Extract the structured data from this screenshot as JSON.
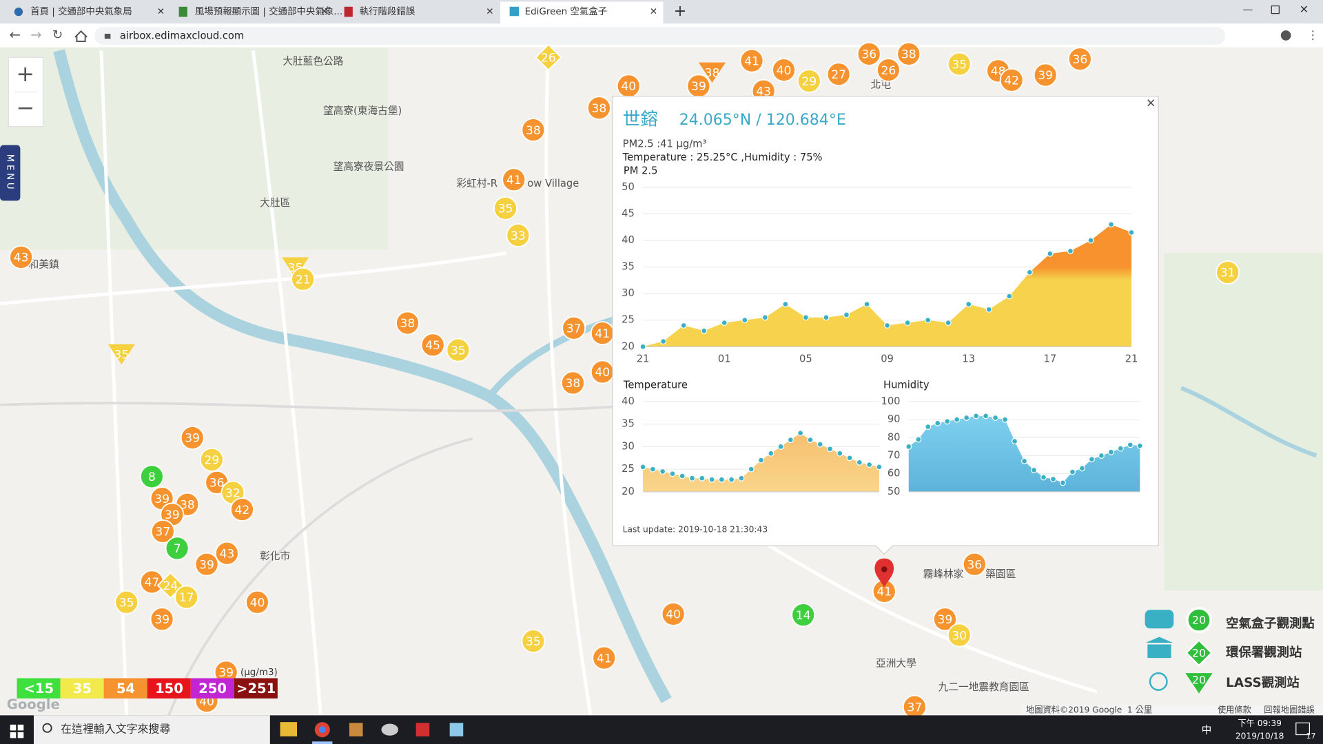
{
  "browser": {
    "tabs": [
      "首頁 | 交通部中央氣象局",
      "風場預報顯示圖 | 交通部中央氣象...",
      "執行階段錯誤",
      "EdiGreen 空氣盒子"
    ],
    "url": "airbox.edimaxcloud.com"
  },
  "map": {
    "menu": "MENU",
    "places": [
      "大肚藍色公路",
      "望高寮(東海古堡)",
      "望高寮夜景公園",
      "大肚區",
      "和美鎮",
      "彰化市",
      "彩虹村-R",
      "ow Village",
      "霧峰林家",
      "築園區",
      "亞洲大學",
      "九二一地震教育園區",
      "北屯"
    ],
    "markers": [
      {
        "value": 26,
        "color": "#f5d142"
      },
      {
        "value": 38,
        "color": "#f7932e"
      },
      {
        "value": 38,
        "color": "#f7932e"
      },
      {
        "value": 41,
        "color": "#f7932e"
      },
      {
        "value": 35,
        "color": "#f5d142"
      },
      {
        "value": 33,
        "color": "#f5d142"
      },
      {
        "value": 43,
        "color": "#f7932e"
      },
      {
        "value": 35,
        "color": "#f5d142"
      },
      {
        "value": 21,
        "color": "#f5d142"
      },
      {
        "value": 35,
        "color": "#f5d142"
      },
      {
        "value": 38,
        "color": "#f7932e"
      },
      {
        "value": 45,
        "color": "#f7932e"
      },
      {
        "value": 35,
        "color": "#f5d142"
      },
      {
        "value": 37,
        "color": "#f7932e"
      },
      {
        "value": 41,
        "color": "#f7932e"
      },
      {
        "value": 40,
        "color": "#f7932e"
      },
      {
        "value": 38,
        "color": "#f7932e"
      },
      {
        "value": 39,
        "color": "#f7932e"
      },
      {
        "value": 29,
        "color": "#f5d142"
      },
      {
        "value": 8,
        "color": "#3ecf3e"
      },
      {
        "value": 36,
        "color": "#f7932e"
      },
      {
        "value": 32,
        "color": "#f5d142"
      },
      {
        "value": 39,
        "color": "#f7932e"
      },
      {
        "value": 38,
        "color": "#f7932e"
      },
      {
        "value": 42,
        "color": "#f7932e"
      },
      {
        "value": 39,
        "color": "#f7932e"
      },
      {
        "value": 37,
        "color": "#f7932e"
      },
      {
        "value": 7,
        "color": "#3ecf3e"
      },
      {
        "value": 43,
        "color": "#f7932e"
      },
      {
        "value": 39,
        "color": "#f7932e"
      },
      {
        "value": 47,
        "color": "#f7932e"
      },
      {
        "value": 24,
        "color": "#f5d142"
      },
      {
        "value": 17,
        "color": "#f5d142"
      },
      {
        "value": 35,
        "color": "#f5d142"
      },
      {
        "value": 40,
        "color": "#f7932e"
      },
      {
        "value": 39,
        "color": "#f7932e"
      },
      {
        "value": 39,
        "color": "#f7932e"
      },
      {
        "value": 40,
        "color": "#f7932e"
      },
      {
        "value": 40,
        "color": "#f7932e"
      },
      {
        "value": 14,
        "color": "#3ecf3e"
      },
      {
        "value": 35,
        "color": "#f5d142"
      },
      {
        "value": 41,
        "color": "#f7932e"
      },
      {
        "value": 41,
        "color": "#f7932e"
      },
      {
        "value": 36,
        "color": "#f7932e"
      },
      {
        "value": 39,
        "color": "#f7932e"
      },
      {
        "value": 30,
        "color": "#f5d142"
      },
      {
        "value": 37,
        "color": "#f7932e"
      },
      {
        "value": 31,
        "color": "#f5d142"
      },
      {
        "value": 41,
        "color": "#f7932e"
      },
      {
        "value": 40,
        "color": "#f7932e"
      },
      {
        "value": 29,
        "color": "#f5d142"
      },
      {
        "value": 27,
        "color": "#f7932e"
      },
      {
        "value": 36,
        "color": "#f7932e"
      },
      {
        "value": 26,
        "color": "#f7932e"
      },
      {
        "value": 38,
        "color": "#f7932e"
      },
      {
        "value": 35,
        "color": "#f5d142"
      },
      {
        "value": 48,
        "color": "#f7932e"
      },
      {
        "value": 42,
        "color": "#f7932e"
      },
      {
        "value": 39,
        "color": "#f7932e"
      },
      {
        "value": 36,
        "color": "#f7932e"
      },
      {
        "value": 40,
        "color": "#f7932e"
      },
      {
        "value": 39,
        "color": "#f7932e"
      },
      {
        "value": 38,
        "color": "#f7932e"
      },
      {
        "value": 43,
        "color": "#f7932e"
      }
    ],
    "scale": {
      "items": [
        {
          "label": "<15",
          "color": "#3ee03e"
        },
        {
          "label": "35",
          "color": "#f2e94a"
        },
        {
          "label": "54",
          "color": "#f7932e"
        },
        {
          "label": "150",
          "color": "#e8141c"
        },
        {
          "label": "250",
          "color": "#c026d3"
        },
        {
          "label": ">251",
          "color": "#8b1010"
        }
      ],
      "unit": "(μg/m3)"
    },
    "station_legend": [
      {
        "badge": "20",
        "label": "空氣盒子觀測點"
      },
      {
        "badge": "20",
        "label": "環保署觀測站"
      },
      {
        "badge": "20",
        "label": "LASS觀測站"
      }
    ],
    "footer": [
      "地圖資料©2019 Google",
      "1 公里",
      "使用條款",
      "回報地圖錯誤"
    ],
    "google": "Google"
  },
  "popup": {
    "name": "世鎔",
    "coords": "24.065°N / 120.684°E",
    "pm": "PM2.5 :41 μg/m³",
    "weather": "Temperature : 25.25°C ,Humidity : 75%",
    "last_update": "Last update: 2019-10-18 21:30:43"
  },
  "chart_data": [
    {
      "type": "area",
      "title": "PM 2.5",
      "categories": [
        "21",
        null,
        null,
        null,
        "01",
        null,
        null,
        null,
        "05",
        null,
        null,
        null,
        "09",
        null,
        null,
        null,
        "13",
        null,
        null,
        null,
        "17",
        null,
        null,
        null,
        "21"
      ],
      "values": [
        20,
        21,
        24,
        23,
        24.5,
        25,
        25.5,
        28,
        25.5,
        25.5,
        26,
        28,
        24,
        24.5,
        25,
        24.5,
        28,
        27,
        29.5,
        34,
        37.5,
        38,
        40,
        43,
        41.5
      ],
      "color": "#f6d24d",
      "peak_color": "#f7922e",
      "point_color": "#3ab0c4",
      "ylim": [
        20,
        50
      ],
      "yticks": [
        20,
        25,
        30,
        35,
        40,
        45,
        50
      ],
      "grid": true
    },
    {
      "type": "area",
      "title": "Temperature",
      "values": [
        25.5,
        25,
        24.5,
        24,
        23.5,
        23,
        23,
        22.7,
        22.7,
        22.7,
        23,
        25,
        27,
        28.5,
        30,
        31.5,
        33,
        31.5,
        30.5,
        29.5,
        28.5,
        27.5,
        26.5,
        26,
        25.5
      ],
      "color": "#f9d58a",
      "peak_color": "#f6c070",
      "point_color": "#3ab0c4",
      "ylim": [
        20,
        40
      ],
      "yticks": [
        20,
        25,
        30,
        35,
        40
      ],
      "grid": true
    },
    {
      "type": "area",
      "title": "Humidity",
      "values": [
        75,
        79,
        86,
        88,
        89,
        90,
        91,
        92,
        92,
        91,
        90,
        78,
        67,
        62,
        58,
        57,
        55,
        61,
        63,
        68,
        70,
        72,
        74,
        76,
        75.5
      ],
      "color": "#5cb3da",
      "peak_color": "#7fd0ef",
      "point_color": "#3ab0c4",
      "ylim": [
        50,
        100
      ],
      "yticks": [
        50,
        60,
        70,
        80,
        90,
        100
      ],
      "grid": true
    }
  ],
  "taskbar": {
    "search": "在這裡輸入文字來搜尋",
    "ime": "中",
    "time": "下午 09:39",
    "date": "2019/10/18",
    "notifications": "17"
  }
}
